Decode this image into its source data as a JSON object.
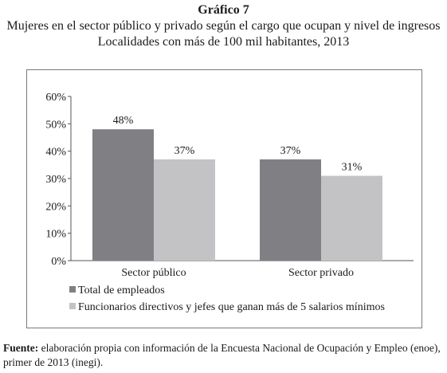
{
  "figure": {
    "number_label": "Gráfico 7",
    "title_line1": "Mujeres en el sector público y privado según el cargo que ocupan y nivel de ingresos",
    "title_line2": "Localidades con más de 100 mil habitantes, 2013"
  },
  "chart_data": {
    "type": "bar",
    "categories": [
      "Sector público",
      "Sector privado"
    ],
    "series": [
      {
        "name": "Total de empleados",
        "values": [
          48,
          37
        ],
        "color": "#807f83"
      },
      {
        "name": "Funcionarios directivos y jefes que ganan más de 5 salarios mínimos",
        "values": [
          37,
          31
        ],
        "color": "#c3c3c6"
      }
    ],
    "data_labels": [
      [
        "48%",
        "37%"
      ],
      [
        "37%",
        "31%"
      ]
    ],
    "yticks": [
      "0%",
      "10%",
      "20%",
      "30%",
      "40%",
      "50%",
      "60%"
    ],
    "ylim": [
      0,
      60
    ],
    "unit": "%",
    "grid": false,
    "legend_position": "bottom-left"
  },
  "source": {
    "label": "Fuente:",
    "text": " elaboración propia con información de la Encuesta Nacional de Ocupación y Empleo (enoe), primer de 2013 (inegi)."
  }
}
